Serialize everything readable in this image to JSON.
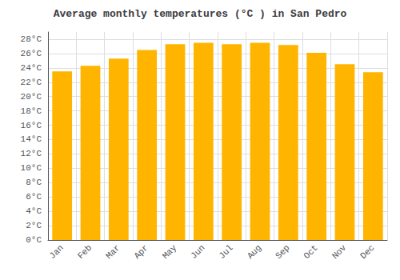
{
  "chart_data": {
    "type": "bar",
    "title": "Average monthly temperatures (°C ) in San Pedro",
    "categories": [
      "Jan",
      "Feb",
      "Mar",
      "Apr",
      "May",
      "Jun",
      "Jul",
      "Aug",
      "Sep",
      "Oct",
      "Nov",
      "Dec"
    ],
    "values": [
      23.5,
      24.3,
      25.3,
      26.5,
      27.3,
      27.5,
      27.3,
      27.5,
      27.2,
      26.1,
      24.5,
      23.4
    ],
    "color": "#FFB400",
    "ylim": [
      0,
      29
    ],
    "yticks": [
      {
        "value": 0,
        "label": "0°C"
      },
      {
        "value": 2,
        "label": "2°C"
      },
      {
        "value": 4,
        "label": "4°C"
      },
      {
        "value": 6,
        "label": "6°C"
      },
      {
        "value": 8,
        "label": "8°C"
      },
      {
        "value": 10,
        "label": "10°C"
      },
      {
        "value": 12,
        "label": "12°C"
      },
      {
        "value": 14,
        "label": "14°C"
      },
      {
        "value": 16,
        "label": "16°C"
      },
      {
        "value": 18,
        "label": "18°C"
      },
      {
        "value": 20,
        "label": "20°C"
      },
      {
        "value": 22,
        "label": "22°C"
      },
      {
        "value": 24,
        "label": "24°C"
      },
      {
        "value": 26,
        "label": "26°C"
      },
      {
        "value": 28,
        "label": "28°C"
      }
    ],
    "grid": true
  }
}
